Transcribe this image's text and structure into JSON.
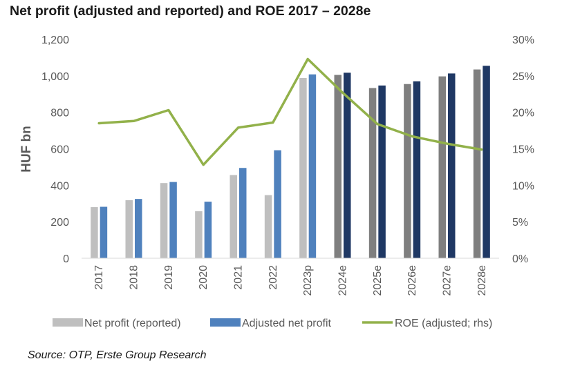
{
  "title": "Net profit (adjusted and reported) and ROE 2017 – 2028e",
  "source": "Source: OTP, Erste Group Research",
  "colors": {
    "reported": "#bfbfbf",
    "adjusted_actual": "#4f81bd",
    "forecast_reported": "#7f7f7f",
    "forecast_adjusted": "#1f3864",
    "roe": "#92b14a",
    "axis_text": "#595959"
  },
  "chart_data": {
    "type": "bar",
    "title": "Net profit (adjusted and reported) and ROE 2017 – 2028e",
    "ylabel": "HUF bn",
    "ylim": [
      0,
      1200
    ],
    "y_ticks": [
      "0",
      "200",
      "400",
      "600",
      "800",
      "1,000",
      "1,200"
    ],
    "y2lim": [
      0,
      30
    ],
    "y2_ticks": [
      "0%",
      "5%",
      "10%",
      "15%",
      "20%",
      "25%",
      "30%"
    ],
    "grid": false,
    "legend": "bottom",
    "categories": [
      "2017",
      "2018",
      "2019",
      "2020",
      "2021",
      "2022",
      "2023p",
      "2024e",
      "2025e",
      "2026e",
      "2027e",
      "2028e"
    ],
    "forecast_from_index": 7,
    "series": [
      {
        "name": "Net profit (reported)",
        "type": "bar",
        "axis": "left",
        "values": [
          280,
          318,
          412,
          258,
          456,
          346,
          988,
          1005,
          933,
          955,
          997,
          1035
        ]
      },
      {
        "name": "Adjusted net profit",
        "type": "bar",
        "axis": "left",
        "values": [
          282,
          325,
          418,
          310,
          495,
          592,
          1008,
          1017,
          947,
          970,
          1013,
          1055
        ]
      },
      {
        "name": "ROE (adjusted; rhs)",
        "type": "line",
        "axis": "right",
        "values": [
          18.5,
          18.8,
          20.3,
          12.8,
          17.9,
          18.6,
          27.3,
          22.7,
          18.4,
          16.7,
          15.7,
          14.9
        ]
      }
    ]
  }
}
